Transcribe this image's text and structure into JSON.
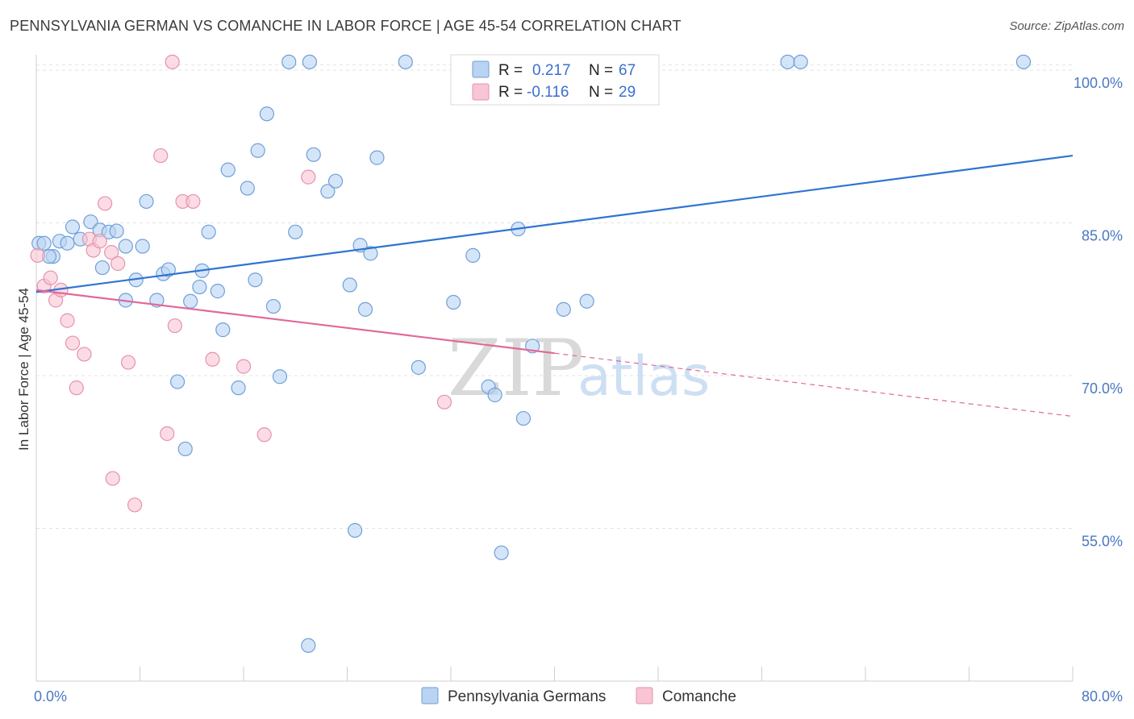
{
  "title": "PENNSYLVANIA GERMAN VS COMANCHE IN LABOR FORCE | AGE 45-54 CORRELATION CHART",
  "source": "Source: ZipAtlas.com",
  "watermark": {
    "zip": "ZIP",
    "atlas": "atlas"
  },
  "colors": {
    "blue_fill": "#b9d3f3",
    "blue_stroke": "#6f9fd8",
    "blue_line": "#2f74d0",
    "pink_fill": "#f8c5d4",
    "pink_stroke": "#e891ad",
    "pink_line": "#e0699a",
    "grid": "#e3e3e3",
    "tick_text": "#4a78c2"
  },
  "legend": {
    "rows": [
      {
        "r_label": "R =",
        "r_value": "0.217",
        "n_label": "N =",
        "n_value": "67"
      },
      {
        "r_label": "R =",
        "r_value": "-0.116",
        "n_label": "N =",
        "n_value": "29"
      }
    ]
  },
  "chart_data": {
    "type": "scatter",
    "title": "PENNSYLVANIA GERMAN VS COMANCHE IN LABOR FORCE | AGE 45-54 CORRELATION CHART",
    "xlabel": "",
    "ylabel": "In Labor Force | Age 45-54",
    "xlim": [
      0,
      80
    ],
    "ylim": [
      40,
      101.5
    ],
    "x_tick_labels": [
      "0.0%",
      "80.0%"
    ],
    "y_ticks": [
      55,
      70,
      85,
      100
    ],
    "y_tick_labels": [
      "55.0%",
      "70.0%",
      "85.0%",
      "100.0%"
    ],
    "grid": true,
    "legend_position": "top-center",
    "series": [
      {
        "name": "Pennsylvania Germans",
        "color": "#b9d3f3",
        "r": 0.217,
        "n": 67,
        "trend": {
          "x": [
            0,
            80
          ],
          "y": [
            78.2,
            91.6
          ],
          "dashed_from": null
        },
        "points": [
          [
            0.2,
            83.0
          ],
          [
            0.6,
            83.0
          ],
          [
            1.3,
            81.7
          ],
          [
            1.8,
            83.2
          ],
          [
            2.4,
            83.0
          ],
          [
            2.8,
            84.6
          ],
          [
            3.4,
            83.4
          ],
          [
            4.2,
            85.1
          ],
          [
            4.9,
            84.3
          ],
          [
            5.1,
            80.6
          ],
          [
            5.6,
            84.1
          ],
          [
            6.2,
            84.2
          ],
          [
            6.9,
            82.7
          ],
          [
            7.7,
            79.4
          ],
          [
            6.9,
            77.4
          ],
          [
            8.2,
            82.7
          ],
          [
            8.5,
            87.1
          ],
          [
            9.3,
            77.4
          ],
          [
            9.8,
            80.0
          ],
          [
            10.2,
            80.4
          ],
          [
            10.9,
            69.4
          ],
          [
            11.5,
            62.8
          ],
          [
            11.9,
            77.3
          ],
          [
            12.6,
            78.7
          ],
          [
            12.8,
            80.3
          ],
          [
            13.3,
            84.1
          ],
          [
            14.0,
            78.3
          ],
          [
            14.4,
            74.5
          ],
          [
            14.8,
            90.2
          ],
          [
            15.6,
            68.8
          ],
          [
            16.3,
            88.4
          ],
          [
            16.9,
            79.4
          ],
          [
            17.1,
            92.1
          ],
          [
            17.8,
            95.7
          ],
          [
            18.3,
            76.8
          ],
          [
            18.8,
            69.9
          ],
          [
            19.5,
            100.8
          ],
          [
            20.0,
            84.1
          ],
          [
            21.1,
            100.8
          ],
          [
            21.4,
            91.7
          ],
          [
            22.5,
            88.1
          ],
          [
            23.1,
            89.1
          ],
          [
            24.2,
            78.9
          ],
          [
            24.6,
            54.8
          ],
          [
            25.0,
            82.8
          ],
          [
            25.4,
            76.5
          ],
          [
            25.8,
            82.0
          ],
          [
            26.3,
            91.4
          ],
          [
            28.5,
            100.8
          ],
          [
            29.5,
            70.8
          ],
          [
            32.2,
            77.2
          ],
          [
            33.7,
            81.8
          ],
          [
            34.9,
            68.9
          ],
          [
            35.4,
            68.1
          ],
          [
            35.9,
            52.6
          ],
          [
            37.2,
            84.4
          ],
          [
            37.6,
            65.8
          ],
          [
            38.3,
            72.9
          ],
          [
            40.7,
            76.5
          ],
          [
            42.5,
            77.3
          ],
          [
            46.3,
            100.8
          ],
          [
            58.0,
            100.8
          ],
          [
            59.0,
            100.8
          ],
          [
            76.2,
            100.8
          ],
          [
            21.0,
            43.5
          ],
          [
            47.0,
            100.8
          ],
          [
            1.0,
            81.7
          ]
        ]
      },
      {
        "name": "Comanche",
        "color": "#f8c5d4",
        "r": -0.116,
        "n": 29,
        "trend": {
          "x": [
            0,
            80
          ],
          "y": [
            78.4,
            66.0
          ],
          "dashed_from": 40
        },
        "points": [
          [
            0.1,
            81.8
          ],
          [
            0.6,
            78.8
          ],
          [
            1.1,
            79.6
          ],
          [
            1.5,
            77.4
          ],
          [
            1.9,
            78.4
          ],
          [
            2.4,
            75.4
          ],
          [
            2.8,
            73.2
          ],
          [
            3.1,
            68.8
          ],
          [
            3.7,
            72.1
          ],
          [
            4.1,
            83.4
          ],
          [
            4.4,
            82.3
          ],
          [
            4.9,
            83.2
          ],
          [
            5.3,
            86.9
          ],
          [
            5.8,
            82.1
          ],
          [
            5.9,
            59.9
          ],
          [
            6.3,
            81.0
          ],
          [
            7.6,
            57.3
          ],
          [
            7.1,
            71.3
          ],
          [
            9.6,
            91.6
          ],
          [
            10.1,
            64.3
          ],
          [
            10.5,
            100.8
          ],
          [
            10.7,
            74.9
          ],
          [
            11.3,
            87.1
          ],
          [
            12.1,
            87.1
          ],
          [
            13.6,
            71.6
          ],
          [
            16.0,
            70.9
          ],
          [
            17.6,
            64.2
          ],
          [
            21.0,
            89.5
          ],
          [
            31.5,
            67.4
          ]
        ]
      }
    ]
  }
}
